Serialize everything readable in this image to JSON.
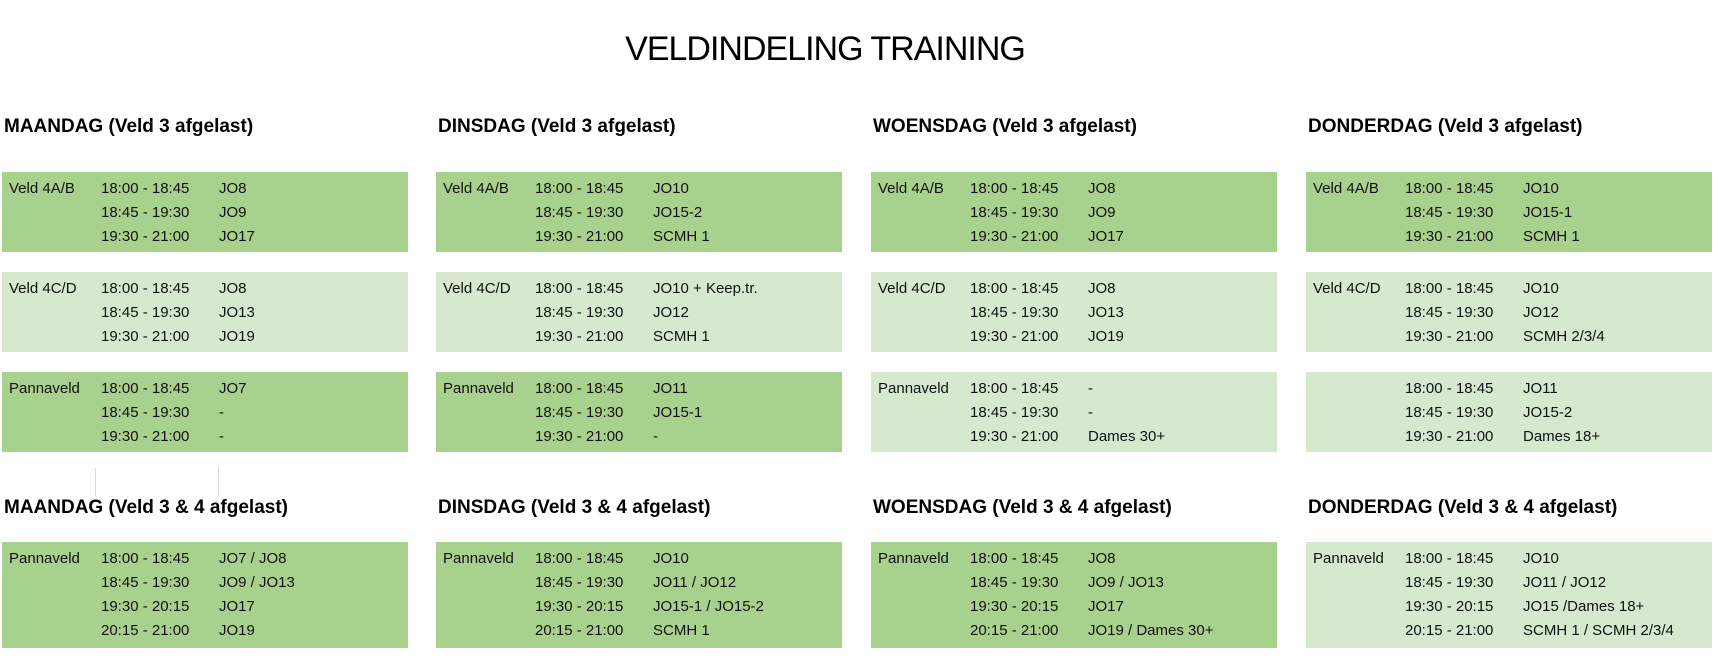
{
  "title": "VELDINDELING TRAINING",
  "colors": {
    "block_green": "#a9d18e",
    "block_green_light": "#d6e8ce"
  },
  "days": [
    {
      "top_heading": "MAANDAG (Veld 3 afgelast)",
      "bottom_heading": "MAANDAG (Veld 3 & 4 afgelast)",
      "top_blocks": [
        {
          "field": "Veld 4A/B",
          "rows": [
            {
              "time": "18:00 - 18:45",
              "team": "JO8"
            },
            {
              "time": "18:45 - 19:30",
              "team": "JO9"
            },
            {
              "time": "19:30 - 21:00",
              "team": "JO17"
            }
          ]
        },
        {
          "field": "Veld 4C/D",
          "rows": [
            {
              "time": "18:00 - 18:45",
              "team": "JO8"
            },
            {
              "time": "18:45 - 19:30",
              "team": "JO13"
            },
            {
              "time": "19:30 - 21:00",
              "team": "JO19"
            }
          ]
        },
        {
          "field": "Pannaveld",
          "rows": [
            {
              "time": "18:00 - 18:45",
              "team": "JO7"
            },
            {
              "time": "18:45 - 19:30",
              "team": "-"
            },
            {
              "time": "19:30 - 21:00",
              "team": "-"
            }
          ]
        }
      ],
      "bottom_block": {
        "field": "Pannaveld",
        "rows": [
          {
            "time": "18:00 - 18:45",
            "team": "JO7 / JO8"
          },
          {
            "time": "18:45 - 19:30",
            "team": "JO9 / JO13"
          },
          {
            "time": "19:30 - 20:15",
            "team": "JO17"
          },
          {
            "time": "20:15 - 21:00",
            "team": "JO19"
          }
        ]
      }
    },
    {
      "top_heading": "DINSDAG (Veld 3 afgelast)",
      "bottom_heading": "DINSDAG (Veld 3 & 4 afgelast)",
      "top_blocks": [
        {
          "field": "Veld 4A/B",
          "rows": [
            {
              "time": "18:00 - 18:45",
              "team": "JO10"
            },
            {
              "time": "18:45 - 19:30",
              "team": "JO15-2"
            },
            {
              "time": "19:30 - 21:00",
              "team": "SCMH 1"
            }
          ]
        },
        {
          "field": "Veld 4C/D",
          "rows": [
            {
              "time": "18:00 - 18:45",
              "team": "JO10 + Keep.tr."
            },
            {
              "time": "18:45 - 19:30",
              "team": "JO12"
            },
            {
              "time": "19:30 - 21:00",
              "team": "SCMH 1"
            }
          ]
        },
        {
          "field": "Pannaveld",
          "rows": [
            {
              "time": "18:00 - 18:45",
              "team": "JO11"
            },
            {
              "time": "18:45 - 19:30",
              "team": "JO15-1"
            },
            {
              "time": "19:30 - 21:00",
              "team": "-"
            }
          ]
        }
      ],
      "bottom_block": {
        "field": "Pannaveld",
        "rows": [
          {
            "time": "18:00 - 18:45",
            "team": "JO10"
          },
          {
            "time": "18:45 - 19:30",
            "team": "JO11 / JO12"
          },
          {
            "time": "19:30 - 20:15",
            "team": "JO15-1 / JO15-2"
          },
          {
            "time": "20:15 - 21:00",
            "team": "SCMH 1"
          }
        ]
      }
    },
    {
      "top_heading": "WOENSDAG (Veld 3 afgelast)",
      "bottom_heading": "WOENSDAG (Veld 3 & 4 afgelast)",
      "top_blocks": [
        {
          "field": "Veld 4A/B",
          "rows": [
            {
              "time": "18:00 - 18:45",
              "team": "JO8"
            },
            {
              "time": "18:45 - 19:30",
              "team": "JO9"
            },
            {
              "time": "19:30 - 21:00",
              "team": "JO17"
            }
          ]
        },
        {
          "field": "Veld 4C/D",
          "rows": [
            {
              "time": "18:00 - 18:45",
              "team": "JO8"
            },
            {
              "time": "18:45 - 19:30",
              "team": "JO13"
            },
            {
              "time": "19:30 - 21:00",
              "team": "JO19"
            }
          ]
        },
        {
          "field": "Pannaveld",
          "rows": [
            {
              "time": "18:00 - 18:45",
              "team": "-"
            },
            {
              "time": "18:45 - 19:30",
              "team": "-"
            },
            {
              "time": "19:30 - 21:00",
              "team": "Dames 30+"
            }
          ]
        }
      ],
      "bottom_block": {
        "field": "Pannaveld",
        "rows": [
          {
            "time": "18:00 - 18:45",
            "team": "JO8"
          },
          {
            "time": "18:45 - 19:30",
            "team": "JO9 / JO13"
          },
          {
            "time": "19:30 - 20:15",
            "team": "JO17"
          },
          {
            "time": "20:15 - 21:00",
            "team": "JO19 / Dames 30+"
          }
        ]
      }
    },
    {
      "top_heading": "DONDERDAG (Veld 3 afgelast)",
      "bottom_heading": "DONDERDAG (Veld 3 & 4 afgelast)",
      "top_blocks": [
        {
          "field": "Veld 4A/B",
          "rows": [
            {
              "time": "18:00 - 18:45",
              "team": "JO10"
            },
            {
              "time": "18:45 - 19:30",
              "team": "JO15-1"
            },
            {
              "time": "19:30 - 21:00",
              "team": "SCMH 1"
            }
          ]
        },
        {
          "field": "Veld 4C/D",
          "rows": [
            {
              "time": "18:00 - 18:45",
              "team": "JO10"
            },
            {
              "time": "18:45 - 19:30",
              "team": "JO12"
            },
            {
              "time": "19:30 - 21:00",
              "team": "SCMH 2/3/4"
            }
          ]
        },
        {
          "field": "",
          "rows": [
            {
              "time": "18:00 - 18:45",
              "team": "JO11"
            },
            {
              "time": "18:45 - 19:30",
              "team": "JO15-2"
            },
            {
              "time": "19:30 - 21:00",
              "team": "Dames 18+"
            }
          ]
        }
      ],
      "bottom_block": {
        "field": "Pannaveld",
        "rows": [
          {
            "time": "18:00 - 18:45",
            "team": "JO10"
          },
          {
            "time": "18:45 - 19:30",
            "team": "JO11 / JO12"
          },
          {
            "time": "19:30 - 20:15",
            "team": "JO15 /Dames 18+"
          },
          {
            "time": "20:15 - 21:00",
            "team": "SCMH 1 / SCMH 2/3/4"
          }
        ]
      }
    }
  ]
}
